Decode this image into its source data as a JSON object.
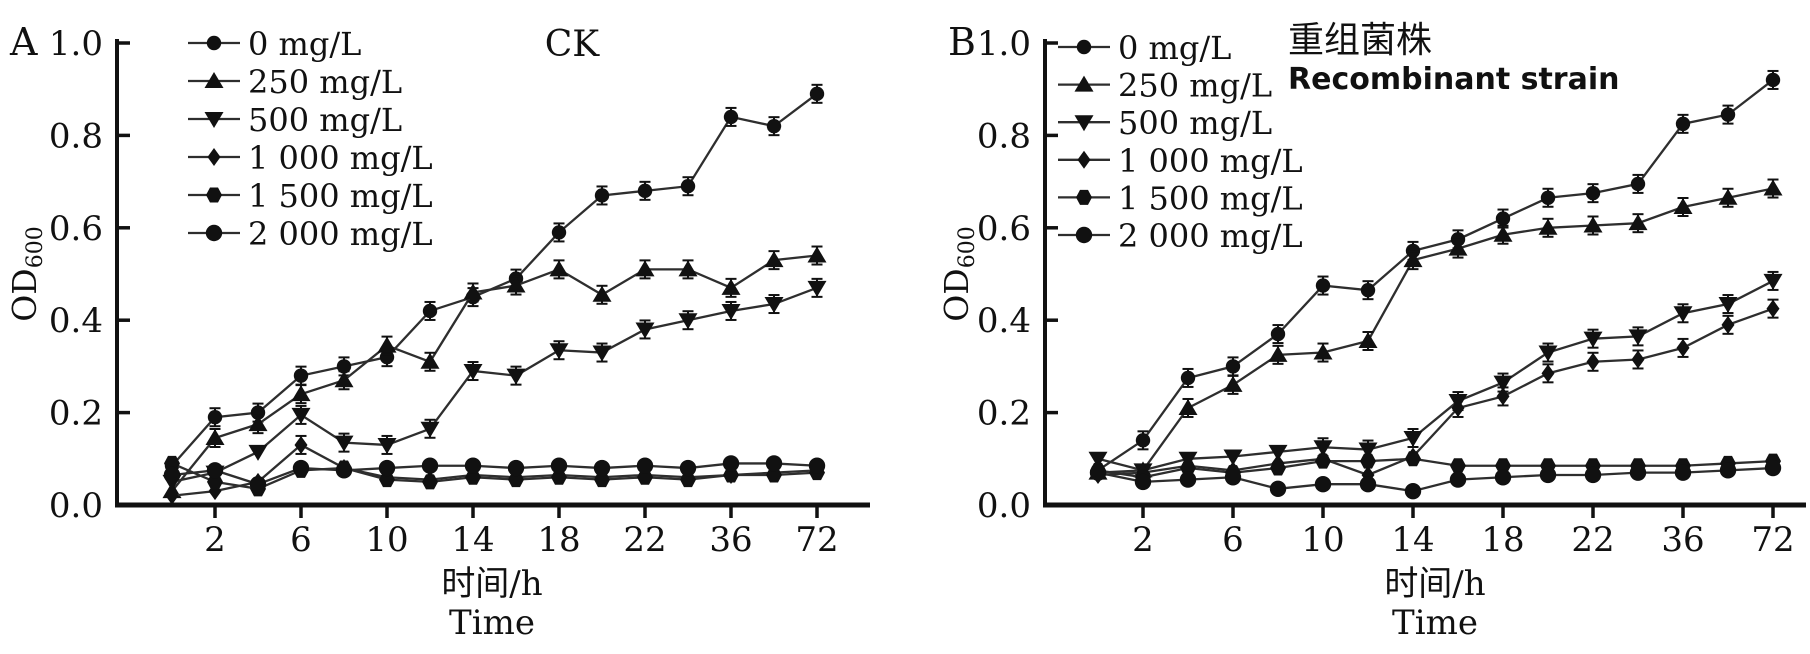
{
  "figure": {
    "background": "#ffffff",
    "ink_color": "#111111",
    "line_color": "#2e2e2e"
  },
  "axes": {
    "y_label_main": "OD",
    "y_label_sub": "600",
    "x_label_cn": "时间/h",
    "x_label_en": "Time",
    "y_tick_labels": [
      "0.0",
      "0.2",
      "0.4",
      "0.6",
      "0.8",
      "1.0"
    ],
    "x_tick_labels": [
      "2",
      "6",
      "10",
      "14",
      "18",
      "22",
      "36",
      "72"
    ]
  },
  "legend": {
    "entries": [
      "0 mg/L",
      "250 mg/L",
      "500 mg/L",
      "1 000 mg/L",
      "1 500 mg/L",
      "2 000 mg/L"
    ]
  },
  "chart_data": [
    {
      "type": "line",
      "panel_label": "A",
      "title_lines": [
        "CK"
      ],
      "xlabel": "时间/h",
      "xlabel2": "Time",
      "ylabel": "OD600",
      "ylim": [
        0,
        1.0
      ],
      "yticks": [
        0,
        0.2,
        0.4,
        0.6,
        0.8,
        1.0
      ],
      "categories": [
        0,
        2,
        4,
        6,
        8,
        10,
        12,
        14,
        16,
        18,
        20,
        22,
        24,
        36,
        48,
        72
      ],
      "x_ticks_labeled": [
        2,
        6,
        10,
        14,
        18,
        22,
        36,
        72
      ],
      "legend_position": "top-left",
      "grid": false,
      "series": [
        {
          "name": "0 mg/L",
          "marker": "circle",
          "values": [
            0.085,
            0.19,
            0.2,
            0.28,
            0.3,
            0.32,
            0.42,
            0.45,
            0.49,
            0.59,
            0.67,
            0.68,
            0.69,
            0.84,
            0.82,
            0.89
          ]
        },
        {
          "name": "250 mg/L",
          "marker": "triangle-up",
          "values": [
            0.03,
            0.145,
            0.175,
            0.24,
            0.27,
            0.345,
            0.31,
            0.46,
            0.475,
            0.51,
            0.455,
            0.51,
            0.51,
            0.47,
            0.53,
            0.54
          ]
        },
        {
          "name": "500 mg/L",
          "marker": "triangle-down",
          "values": [
            0.05,
            0.07,
            0.115,
            0.195,
            0.135,
            0.13,
            0.165,
            0.29,
            0.28,
            0.335,
            0.33,
            0.38,
            0.4,
            0.42,
            0.435,
            0.47
          ]
        },
        {
          "name": "1 000 mg/L",
          "marker": "diamond",
          "values": [
            0.02,
            0.03,
            0.05,
            0.13,
            0.08,
            0.06,
            0.055,
            0.065,
            0.06,
            0.065,
            0.06,
            0.065,
            0.06,
            0.065,
            0.07,
            0.075
          ]
        },
        {
          "name": "1 500 mg/L",
          "marker": "hexagon",
          "values": [
            0.09,
            0.05,
            0.035,
            0.075,
            0.08,
            0.055,
            0.05,
            0.06,
            0.055,
            0.06,
            0.055,
            0.06,
            0.055,
            0.065,
            0.065,
            0.07
          ]
        },
        {
          "name": "2 000 mg/L",
          "marker": "circle-large",
          "values": [
            0.065,
            0.075,
            0.045,
            0.08,
            0.075,
            0.08,
            0.085,
            0.085,
            0.08,
            0.085,
            0.08,
            0.085,
            0.08,
            0.09,
            0.09,
            0.085
          ]
        }
      ]
    },
    {
      "type": "line",
      "panel_label": "B",
      "title_lines": [
        "重组菌株",
        "Recombinant strain"
      ],
      "xlabel": "时间/h",
      "xlabel2": "Time",
      "ylabel": "OD600",
      "ylim": [
        0,
        1.0
      ],
      "yticks": [
        0,
        0.2,
        0.4,
        0.6,
        0.8,
        1.0
      ],
      "categories": [
        0,
        2,
        4,
        6,
        8,
        10,
        12,
        14,
        16,
        18,
        20,
        22,
        24,
        36,
        48,
        72
      ],
      "x_ticks_labeled": [
        2,
        6,
        10,
        14,
        18,
        22,
        36,
        72
      ],
      "legend_position": "top-left",
      "grid": false,
      "series": [
        {
          "name": "0 mg/L",
          "marker": "circle",
          "values": [
            0.075,
            0.14,
            0.275,
            0.3,
            0.37,
            0.475,
            0.465,
            0.55,
            0.575,
            0.62,
            0.665,
            0.675,
            0.695,
            0.825,
            0.845,
            0.92
          ]
        },
        {
          "name": "250 mg/L",
          "marker": "triangle-up",
          "values": [
            0.07,
            0.075,
            0.21,
            0.26,
            0.325,
            0.33,
            0.355,
            0.53,
            0.555,
            0.585,
            0.6,
            0.605,
            0.61,
            0.645,
            0.665,
            0.685
          ]
        },
        {
          "name": "500 mg/L",
          "marker": "triangle-down",
          "values": [
            0.1,
            0.075,
            0.1,
            0.105,
            0.115,
            0.125,
            0.12,
            0.145,
            0.225,
            0.265,
            0.33,
            0.36,
            0.365,
            0.415,
            0.435,
            0.485
          ]
        },
        {
          "name": "1 000 mg/L",
          "marker": "diamond",
          "values": [
            0.065,
            0.07,
            0.085,
            0.075,
            0.09,
            0.1,
            0.065,
            0.105,
            0.21,
            0.235,
            0.285,
            0.31,
            0.315,
            0.34,
            0.39,
            0.425
          ]
        },
        {
          "name": "1 500 mg/L",
          "marker": "hexagon",
          "values": [
            0.075,
            0.06,
            0.08,
            0.07,
            0.08,
            0.095,
            0.095,
            0.1,
            0.085,
            0.085,
            0.085,
            0.085,
            0.085,
            0.085,
            0.09,
            0.095
          ]
        },
        {
          "name": "2 000 mg/L",
          "marker": "circle-large",
          "values": [
            0.07,
            0.05,
            0.055,
            0.06,
            0.035,
            0.045,
            0.045,
            0.03,
            0.055,
            0.06,
            0.065,
            0.065,
            0.07,
            0.07,
            0.075,
            0.08
          ]
        }
      ]
    }
  ]
}
